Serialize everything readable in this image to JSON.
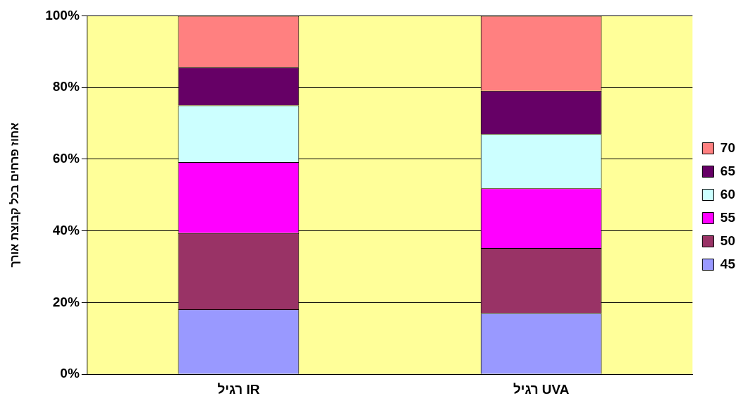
{
  "chart_data": {
    "type": "bar",
    "stacked": true,
    "ylabel": "אחוז פרחים בכל קבוצת אורך",
    "categories": [
      "רגיל IR",
      "רגיל UVA"
    ],
    "series": [
      {
        "name": "45",
        "color": "#9999ff",
        "values": [
          18.1,
          17.1
        ]
      },
      {
        "name": "50",
        "color": "#993366",
        "values": [
          21.3,
          18.1
        ]
      },
      {
        "name": "55",
        "color": "#ff00ff",
        "values": [
          19.8,
          16.7
        ]
      },
      {
        "name": "60",
        "color": "#ccffff",
        "values": [
          15.8,
          15.1
        ]
      },
      {
        "name": "65",
        "color": "#660066",
        "values": [
          10.7,
          12.1
        ]
      },
      {
        "name": "70",
        "color": "#ff8080",
        "values": [
          14.3,
          20.9
        ]
      }
    ],
    "ylim": [
      0,
      100
    ],
    "yticks": [
      {
        "value": 0,
        "label": "0%"
      },
      {
        "value": 20,
        "label": "20%"
      },
      {
        "value": 40,
        "label": "40%"
      },
      {
        "value": 60,
        "label": "60%"
      },
      {
        "value": 80,
        "label": "80%"
      },
      {
        "value": 100,
        "label": "100%"
      }
    ],
    "grid": "y",
    "legend": "right"
  }
}
